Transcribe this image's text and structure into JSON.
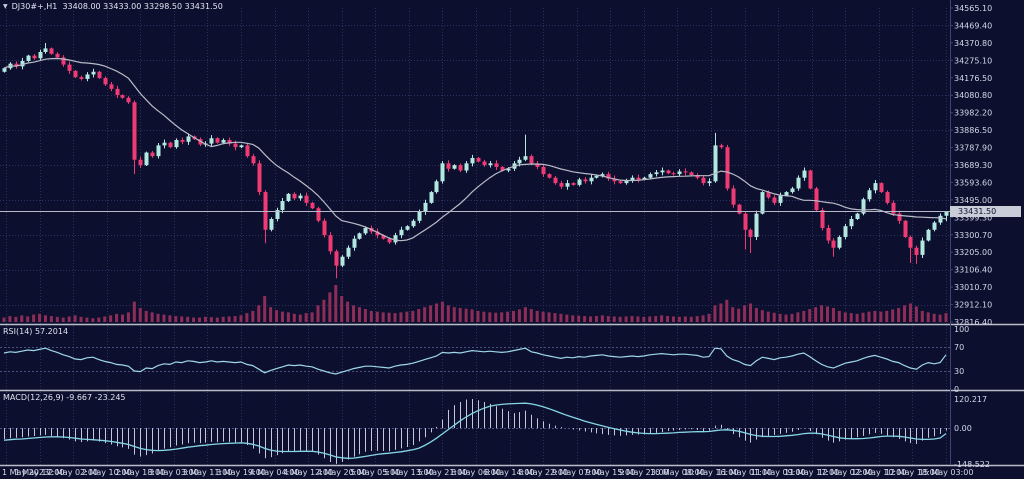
{
  "window": {
    "title": "DJ30#+,H1  33408.00 33433.00 33298.50 33431.50",
    "symbol": "DJ30#+",
    "timeframe": "H1",
    "ohlc": {
      "open": "33408.00",
      "high": "33433.00",
      "low": "33298.50",
      "close": "33431.50"
    }
  },
  "panels": {
    "rsi_label": "RSI(14) 57.2014",
    "macd_label": "MACD(12,26,9) -9.667 -23.245"
  },
  "price_axis": {
    "ticks": [
      "34565.10",
      "34469.40",
      "34370.80",
      "34275.10",
      "34176.50",
      "34080.80",
      "33982.20",
      "33886.50",
      "33787.90",
      "33689.30",
      "33593.60",
      "33495.00",
      "33399.30",
      "33300.70",
      "33205.00",
      "33106.40",
      "33010.70",
      "32912.10",
      "32816.40"
    ],
    "current": {
      "label": "33431.50",
      "value": 33431.5
    }
  },
  "colors": {
    "bg": "#0c102e",
    "grid": "#2b3161",
    "bull": "#b2e8e0",
    "bear": "#ef3a74",
    "ma": "#b9bcc8",
    "volume": "#8e2e58",
    "rsi_line": "#9fd7ea",
    "macd_signal": "#86d5e6",
    "macd_hist": "#c3c7d8",
    "axis_text": "#d4d8e8",
    "separator": "#b9bdc9",
    "axis_border": "#3e4575",
    "price_line": "#b7bac6",
    "level_line": "#4a5082",
    "price_tag_bg": "#c9cdd8",
    "price_tag_text": "#0d1130"
  },
  "chart_data": [
    {
      "type": "candlestick",
      "title": "DJ30#+ H1",
      "ylim": [
        32816.4,
        34565.1
      ],
      "current_price": 33431.5,
      "ma_period": 14,
      "first_open": 34210,
      "x_labels": [
        "1 May 2023",
        "1 May 17:00",
        "2 May 02:00",
        "2 May 10:00",
        "2 May 18:00",
        "3 May 03:00",
        "3 May 11:00",
        "3 May 19:00",
        "4 May 04:00",
        "4 May 12:00",
        "4 May 20:00",
        "5 May 05:00",
        "5 May 13:00",
        "5 May 21:00",
        "8 May 06:00",
        "8 May 14:00",
        "8 May 22:00",
        "9 May 07:00",
        "9 May 15:00",
        "9 May 23:00",
        "10 May 08:00",
        "10 May 16:00",
        "11 May 01:00",
        "11 May 09:00",
        "11 May 17:00",
        "12 May 02:00",
        "12 May 10:00",
        "12 May 18:00",
        "15 May 03:00"
      ],
      "closes": [
        34230,
        34255,
        34240,
        34270,
        34300,
        34285,
        34320,
        34340,
        34310,
        34290,
        34250,
        34215,
        34180,
        34170,
        34195,
        34210,
        34175,
        34140,
        34115,
        34080,
        34065,
        34040,
        33720,
        33690,
        33760,
        33740,
        33800,
        33815,
        33790,
        33830,
        33820,
        33850,
        33835,
        33805,
        33810,
        33840,
        33815,
        33830,
        33810,
        33790,
        33800,
        33740,
        33700,
        33540,
        33330,
        33390,
        33440,
        33490,
        33530,
        33505,
        33520,
        33480,
        33450,
        33380,
        33300,
        33210,
        33130,
        33180,
        33230,
        33280,
        33310,
        33340,
        33320,
        33300,
        33280,
        33260,
        33300,
        33330,
        33350,
        33380,
        33430,
        33480,
        33540,
        33600,
        33700,
        33670,
        33690,
        33660,
        33700,
        33730,
        33710,
        33690,
        33700,
        33680,
        33660,
        33670,
        33700,
        33720,
        33740,
        33700,
        33680,
        33640,
        33620,
        33590,
        33570,
        33590,
        33580,
        33610,
        33600,
        33620,
        33630,
        33640,
        33615,
        33600,
        33590,
        33605,
        33620,
        33610,
        33620,
        33640,
        33650,
        33660,
        33645,
        33640,
        33655,
        33650,
        33635,
        33620,
        33590,
        33600,
        33800,
        33790,
        33560,
        33470,
        33420,
        33330,
        33290,
        33420,
        33540,
        33510,
        33480,
        33520,
        33540,
        33560,
        33620,
        33660,
        33560,
        33440,
        33340,
        33270,
        33230,
        33290,
        33350,
        33390,
        33420,
        33500,
        33550,
        33590,
        33540,
        33480,
        33420,
        33380,
        33290,
        33230,
        33190,
        33270,
        33330,
        33370,
        33408,
        33431
      ],
      "wick_overrides": {
        "7": [
          30,
          10
        ],
        "22": [
          10,
          80
        ],
        "44": [
          10,
          75
        ],
        "56": [
          10,
          70
        ],
        "88": [
          120,
          8
        ],
        "120": [
          70,
          8
        ],
        "125": [
          8,
          110
        ],
        "126": [
          8,
          90
        ],
        "140": [
          12,
          50
        ],
        "153": [
          8,
          85
        ],
        "154": [
          12,
          50
        ],
        "159": [
          2,
          30
        ]
      },
      "volumes": [
        12,
        16,
        14,
        18,
        15,
        20,
        22,
        18,
        16,
        14,
        12,
        15,
        18,
        14,
        12,
        10,
        12,
        15,
        18,
        22,
        20,
        26,
        55,
        38,
        30,
        26,
        22,
        20,
        18,
        16,
        15,
        14,
        12,
        12,
        14,
        13,
        12,
        14,
        15,
        16,
        18,
        24,
        30,
        45,
        70,
        40,
        32,
        28,
        26,
        22,
        20,
        24,
        26,
        45,
        60,
        80,
        100,
        70,
        55,
        45,
        40,
        35,
        30,
        28,
        26,
        25,
        24,
        26,
        28,
        30,
        35,
        40,
        45,
        50,
        55,
        45,
        40,
        38,
        36,
        34,
        30,
        28,
        26,
        25,
        26,
        28,
        30,
        34,
        40,
        35,
        30,
        28,
        26,
        24,
        22,
        20,
        18,
        17,
        16,
        15,
        16,
        18,
        16,
        15,
        14,
        15,
        16,
        15,
        14,
        15,
        16,
        18,
        16,
        15,
        14,
        15,
        14,
        16,
        18,
        22,
        45,
        50,
        60,
        40,
        36,
        45,
        50,
        38,
        32,
        28,
        25,
        22,
        20,
        22,
        26,
        30,
        35,
        40,
        45,
        42,
        38,
        30,
        26,
        24,
        22,
        25,
        28,
        30,
        28,
        30,
        34,
        38,
        45,
        50,
        42,
        30,
        26,
        22,
        20,
        24
      ]
    },
    {
      "type": "line",
      "name": "RSI(14)",
      "value_current": 57.2014,
      "ylim": [
        0,
        100
      ],
      "levels": [
        70,
        30
      ],
      "axis_ticks": [
        "100",
        "70",
        "30",
        "0"
      ],
      "axis_tick_values": [
        100,
        70,
        30,
        0
      ],
      "values": [
        60,
        62,
        61,
        63,
        65,
        64,
        66,
        68,
        64,
        61,
        57,
        54,
        50,
        49,
        52,
        53,
        49,
        46,
        44,
        41,
        40,
        38,
        30,
        29,
        35,
        34,
        39,
        42,
        41,
        45,
        44,
        47,
        46,
        44,
        45,
        47,
        45,
        46,
        45,
        44,
        45,
        41,
        39,
        33,
        27,
        31,
        34,
        37,
        40,
        39,
        40,
        38,
        37,
        33,
        30,
        27,
        25,
        28,
        31,
        34,
        36,
        38,
        38,
        37,
        36,
        35,
        38,
        40,
        41,
        43,
        46,
        49,
        52,
        55,
        61,
        60,
        61,
        60,
        62,
        64,
        63,
        62,
        63,
        62,
        61,
        62,
        64,
        66,
        68,
        62,
        60,
        57,
        55,
        53,
        51,
        53,
        52,
        54,
        53,
        55,
        56,
        57,
        55,
        54,
        53,
        54,
        55,
        54,
        55,
        57,
        58,
        59,
        58,
        57,
        58,
        58,
        57,
        56,
        53,
        54,
        68,
        67,
        55,
        49,
        46,
        41,
        39,
        47,
        53,
        51,
        49,
        52,
        53,
        55,
        58,
        60,
        54,
        47,
        41,
        37,
        35,
        39,
        43,
        45,
        47,
        51,
        54,
        56,
        53,
        50,
        46,
        44,
        39,
        35,
        33,
        40,
        44,
        42,
        44,
        57
      ]
    },
    {
      "type": "macd",
      "name": "MACD(12,26,9)",
      "macd_current": -9.667,
      "signal_current": -23.245,
      "ylim": [
        -148.522,
        120.217
      ],
      "axis_ticks": [
        "120.217",
        "0.00",
        "-148.522"
      ],
      "axis_tick_values": [
        120.217,
        0,
        -148.522
      ],
      "histogram": [
        -45,
        -42,
        -40,
        -38,
        -35,
        -33,
        -30,
        -28,
        -32,
        -36,
        -42,
        -48,
        -55,
        -58,
        -55,
        -52,
        -56,
        -62,
        -68,
        -75,
        -80,
        -86,
        -110,
        -118,
        -112,
        -105,
        -95,
        -85,
        -80,
        -72,
        -68,
        -62,
        -60,
        -62,
        -60,
        -57,
        -58,
        -56,
        -57,
        -59,
        -58,
        -70,
        -85,
        -105,
        -125,
        -120,
        -112,
        -104,
        -96,
        -95,
        -92,
        -94,
        -96,
        -110,
        -125,
        -140,
        -148,
        -140,
        -130,
        -118,
        -108,
        -98,
        -95,
        -94,
        -95,
        -96,
        -90,
        -84,
        -78,
        -70,
        -55,
        -38,
        -18,
        5,
        35,
        75,
        95,
        108,
        118,
        120,
        115,
        108,
        100,
        90,
        80,
        70,
        62,
        66,
        72,
        55,
        40,
        28,
        18,
        10,
        4,
        0,
        -6,
        -10,
        -14,
        -18,
        -22,
        -25,
        -28,
        -30,
        -32,
        -30,
        -28,
        -27,
        -26,
        -24,
        -20,
        -16,
        -12,
        -10,
        -8,
        -6,
        -5,
        -8,
        -14,
        -10,
        10,
        14,
        -8,
        -25,
        -38,
        -52,
        -60,
        -48,
        -38,
        -32,
        -28,
        -24,
        -20,
        -15,
        -8,
        -2,
        -12,
        -25,
        -40,
        -52,
        -60,
        -55,
        -48,
        -42,
        -38,
        -32,
        -26,
        -20,
        -24,
        -30,
        -38,
        -45,
        -55,
        -62,
        -66,
        -52,
        -40,
        -34,
        -24,
        -10
      ],
      "signal": [
        -50,
        -48,
        -46,
        -45,
        -43,
        -41,
        -39,
        -37,
        -36,
        -36,
        -37,
        -39,
        -42,
        -45,
        -47,
        -48,
        -50,
        -52,
        -55,
        -59,
        -63,
        -68,
        -76,
        -84,
        -89,
        -92,
        -93,
        -92,
        -90,
        -87,
        -83,
        -79,
        -76,
        -73,
        -71,
        -68,
        -66,
        -64,
        -63,
        -62,
        -61,
        -63,
        -67,
        -74,
        -84,
        -91,
        -95,
        -97,
        -97,
        -97,
        -96,
        -96,
        -96,
        -99,
        -104,
        -111,
        -119,
        -123,
        -125,
        -124,
        -121,
        -117,
        -113,
        -109,
        -106,
        -104,
        -101,
        -98,
        -94,
        -90,
        -83,
        -72,
        -58,
        -42,
        -24,
        -6,
        12,
        30,
        46,
        60,
        72,
        82,
        90,
        95,
        98,
        100,
        101,
        102,
        103,
        100,
        95,
        88,
        80,
        71,
        62,
        53,
        45,
        37,
        29,
        22,
        15,
        9,
        3,
        -3,
        -8,
        -13,
        -17,
        -20,
        -22,
        -23,
        -23,
        -22,
        -21,
        -20,
        -18,
        -17,
        -16,
        -15,
        -15,
        -14,
        -11,
        -8,
        -7,
        -9,
        -13,
        -19,
        -26,
        -31,
        -34,
        -35,
        -35,
        -34,
        -32,
        -30,
        -27,
        -23,
        -21,
        -21,
        -24,
        -29,
        -35,
        -40,
        -43,
        -44,
        -44,
        -43,
        -41,
        -38,
        -35,
        -33,
        -33,
        -34,
        -37,
        -41,
        -45,
        -47,
        -47,
        -45,
        -41,
        -23
      ]
    }
  ]
}
